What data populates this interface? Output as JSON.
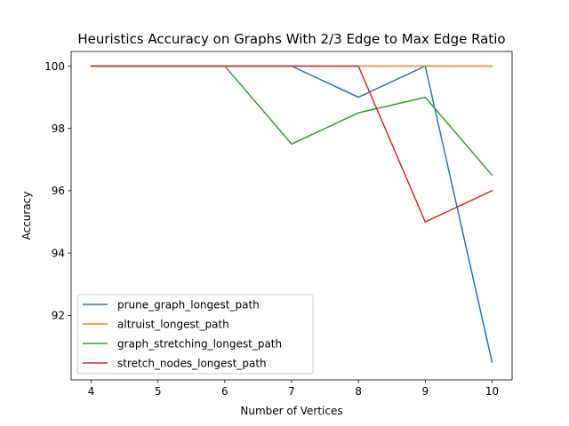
{
  "chart_data": {
    "type": "line",
    "title": "Heuristics Accuracy on Graphs With 2/3 Edge to Max Edge Ratio",
    "xlabel": "Number of Vertices",
    "ylabel": "Accuracy",
    "x": [
      4,
      5,
      6,
      7,
      8,
      9,
      10
    ],
    "xlim": [
      3.7,
      10.3
    ],
    "ylim": [
      89.93,
      100.47
    ],
    "x_ticks": [
      4,
      5,
      6,
      7,
      8,
      9,
      10
    ],
    "y_ticks": [
      92,
      94,
      96,
      98,
      100
    ],
    "grid": false,
    "legend_position": "lower-left",
    "series": [
      {
        "name": "prune_graph_longest_path",
        "color": "#1f77b4",
        "values": [
          100,
          100,
          100,
          100,
          99,
          100,
          90.5
        ]
      },
      {
        "name": "altruist_longest_path",
        "color": "#ff7f0e",
        "values": [
          100,
          100,
          100,
          100,
          100,
          100,
          100
        ]
      },
      {
        "name": "graph_stretching_longest_path",
        "color": "#2ca02c",
        "values": [
          100,
          100,
          100,
          97.5,
          98.5,
          99,
          96.5
        ]
      },
      {
        "name": "stretch_nodes_longest_path",
        "color": "#d62728",
        "values": [
          100,
          100,
          100,
          100,
          100,
          95,
          96
        ]
      }
    ]
  }
}
